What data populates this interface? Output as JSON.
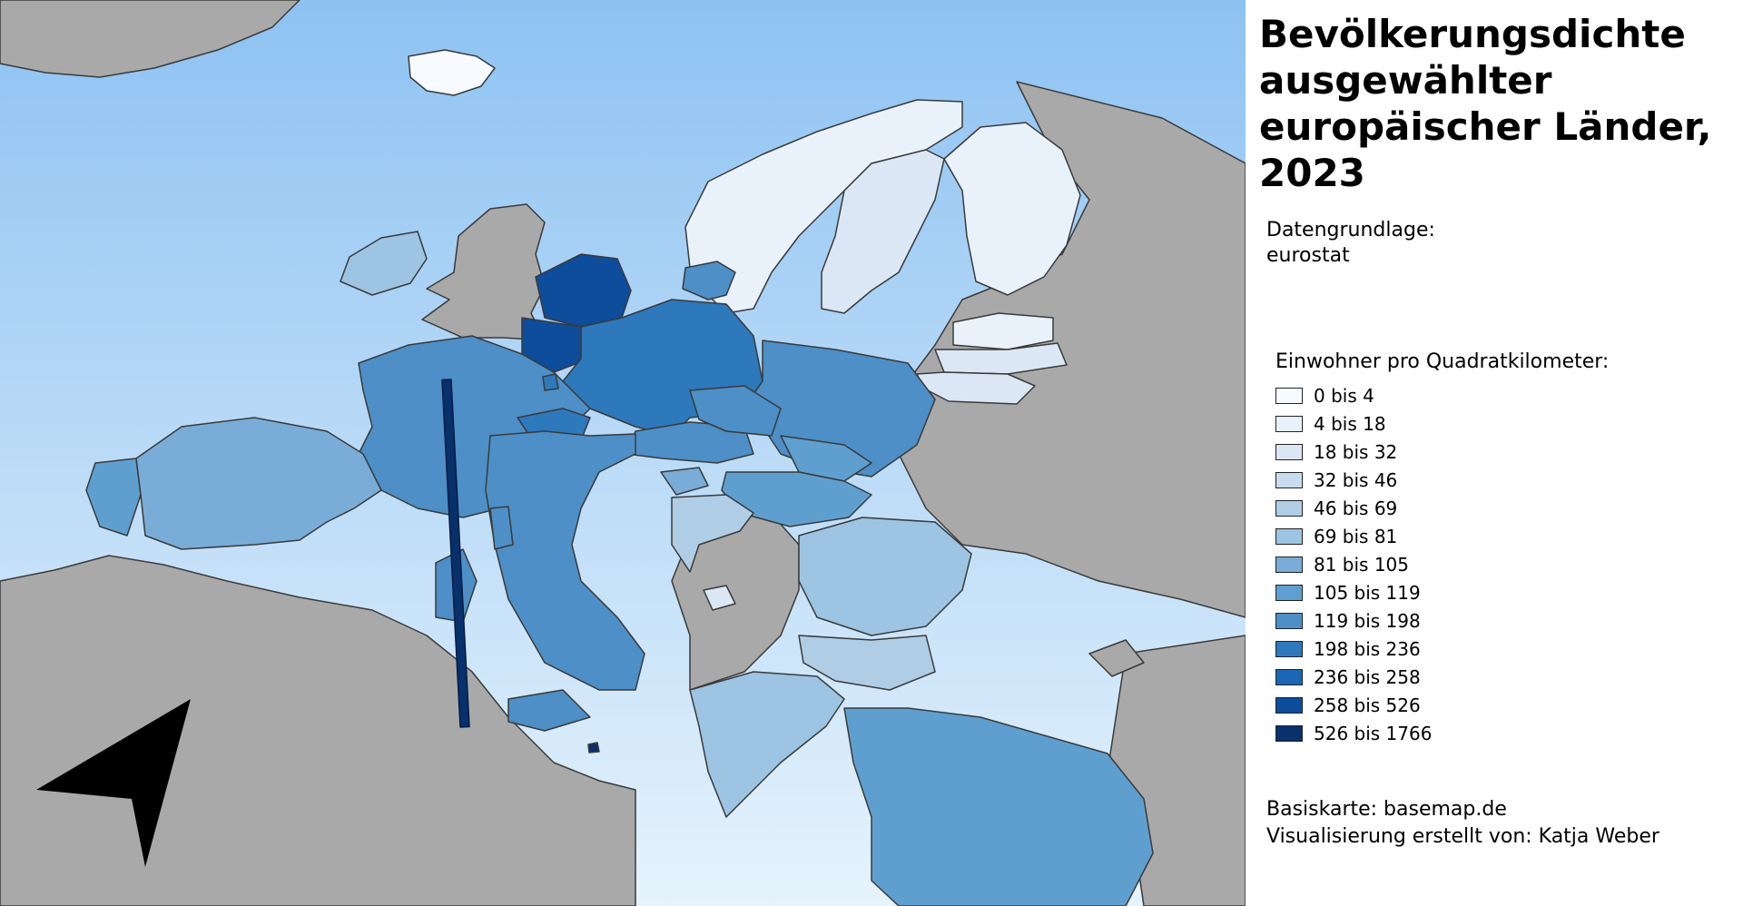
{
  "title": "Bevölkerungsdichte ausgewählter europäischer Länder, 2023",
  "source": {
    "label": "Datengrundlage:",
    "value": "eurostat"
  },
  "legend": {
    "title": "Einwohner pro Quadratkilometer:",
    "classes": [
      {
        "label": "0 bis 4",
        "color": "#f7fbff"
      },
      {
        "label": "4 bis 18",
        "color": "#e9f2fb"
      },
      {
        "label": "18 bis 32",
        "color": "#dbe7f4"
      },
      {
        "label": "32 bis 46",
        "color": "#c9dbee"
      },
      {
        "label": "46 bis 69",
        "color": "#b0cde6"
      },
      {
        "label": "69 bis 81",
        "color": "#9dc4e2"
      },
      {
        "label": "81 bis 105",
        "color": "#79add8"
      },
      {
        "label": "105 bis 119",
        "color": "#5f9fd0"
      },
      {
        "label": "119 bis 198",
        "color": "#4d8fc6"
      },
      {
        "label": "198 bis 236",
        "color": "#2e78bc"
      },
      {
        "label": "236 bis 258",
        "color": "#1d66b4"
      },
      {
        "label": "258 bis 526",
        "color": "#0d4d9c"
      },
      {
        "label": "526 bis 1766",
        "color": "#08306b"
      }
    ]
  },
  "credits": {
    "basemap": "Basiskarte: basemap.de",
    "author": "Visualisierung erstellt von: Katja Weber"
  },
  "map": {
    "north_arrow_icon": "north-arrow-icon",
    "colors": {
      "sea_top": "#8ec2f2",
      "sea_bottom": "#e6f3fc",
      "land_other": "#a9a9a9",
      "border": "#3a3a3a"
    }
  }
}
